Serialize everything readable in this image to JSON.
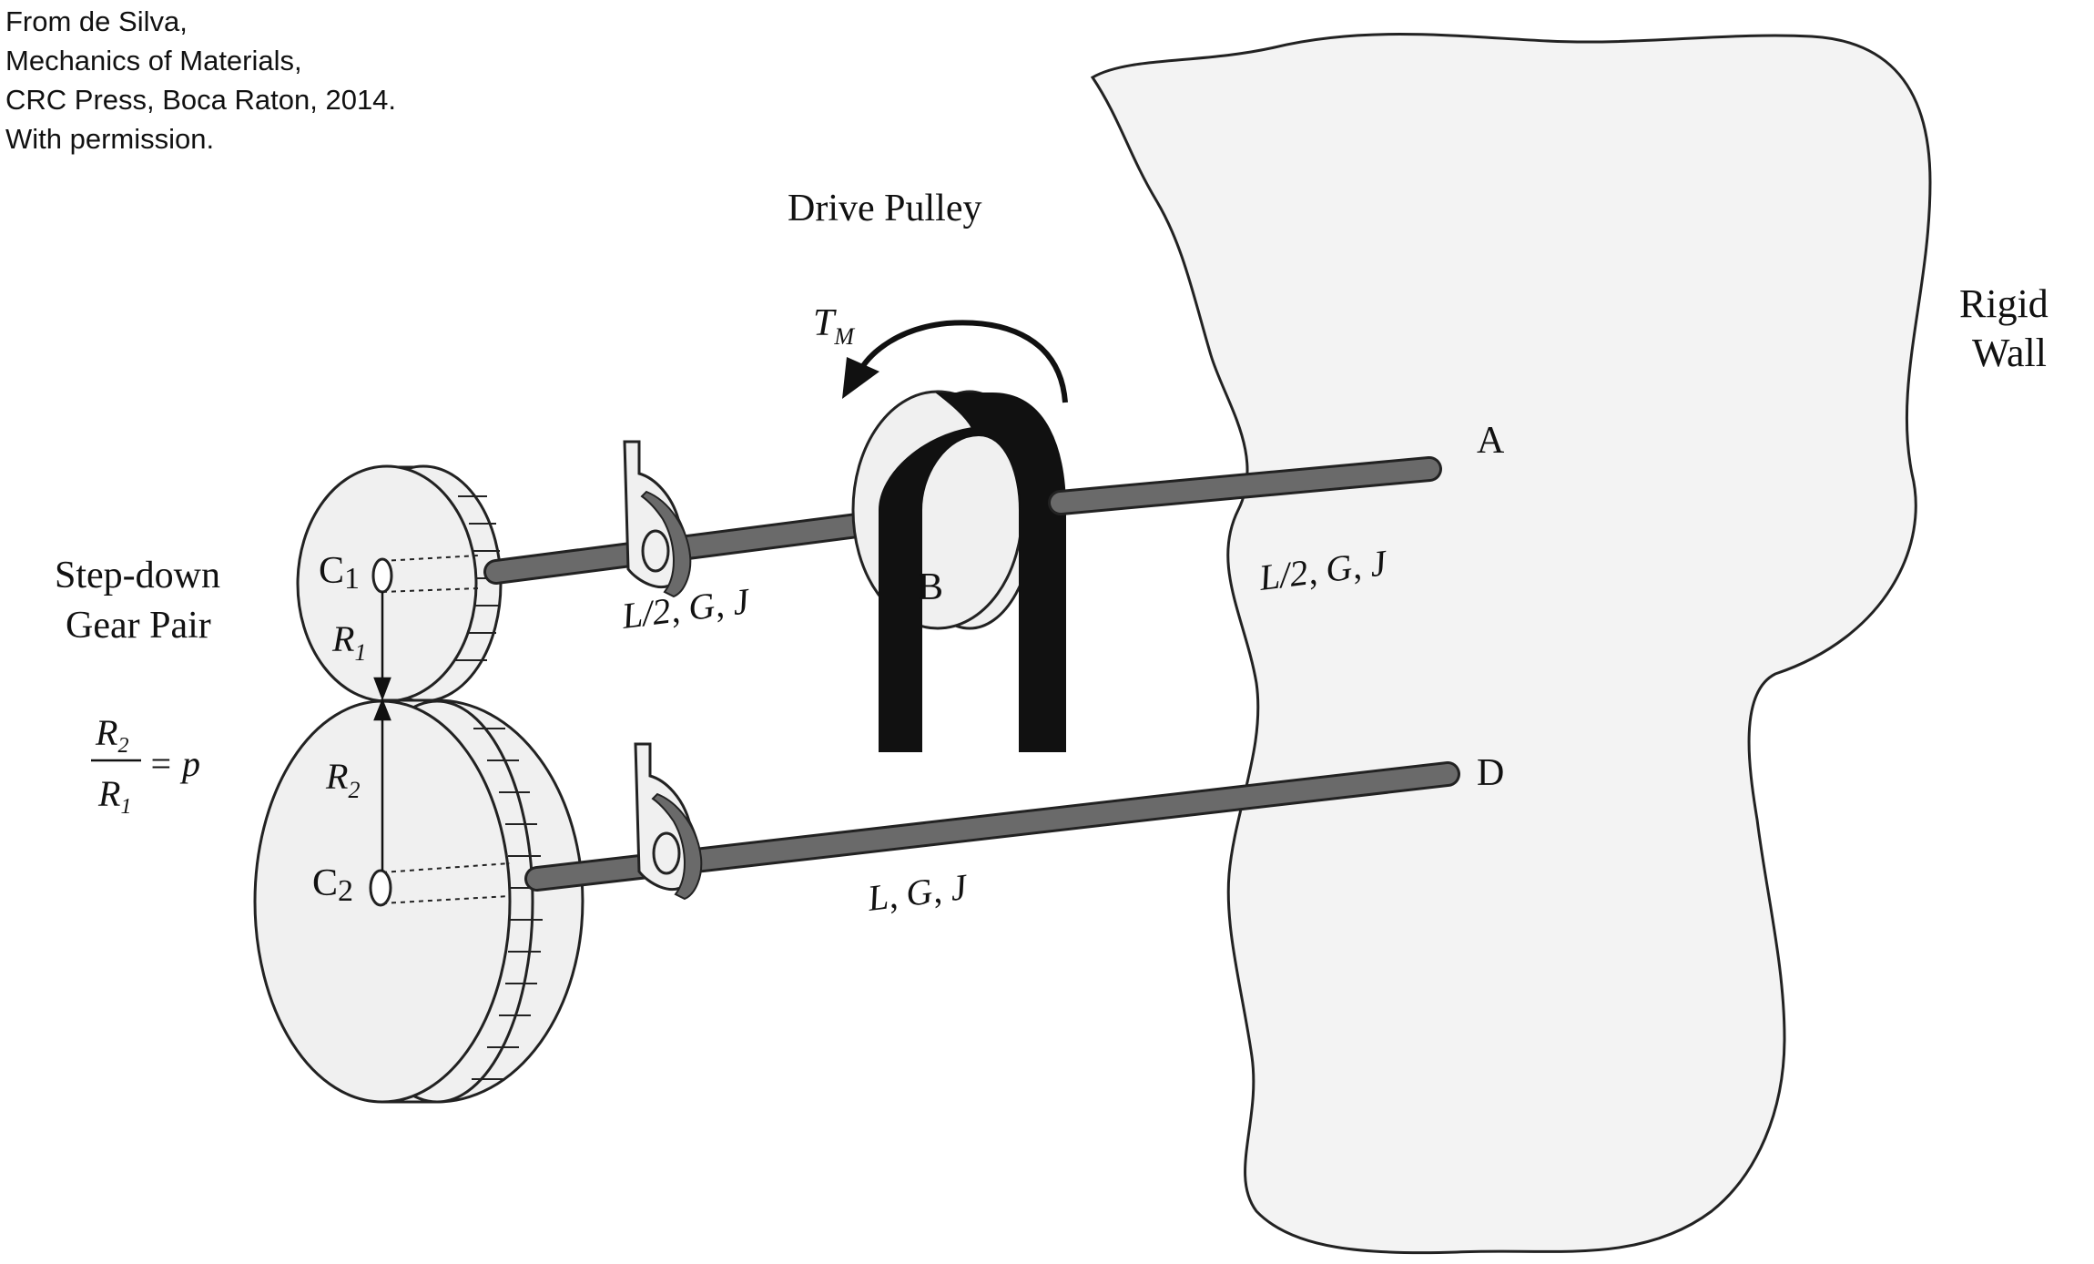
{
  "credit": {
    "line1": "From de Silva,",
    "line2": "Mechanics of Materials,",
    "line3": "CRC Press, Boca Raton, 2014.",
    "line4": "With permission."
  },
  "labels": {
    "drive_pulley": "Drive Pulley",
    "torque_symbol": "T",
    "torque_subscript": "M",
    "rigid": "Rigid",
    "wall": "Wall",
    "point_a": "A",
    "point_b": "B",
    "point_d": "D",
    "c1": "C",
    "c1_sub": "1",
    "c2": "C",
    "c2_sub": "2",
    "r1": "R",
    "r1_sub": "1",
    "r2": "R",
    "r2_sub": "2",
    "step_down": "Step-down",
    "gear_pair": "Gear Pair",
    "ratio_num": "R",
    "ratio_num_sub": "2",
    "ratio_den": "R",
    "ratio_den_sub": "1",
    "ratio_eq": "= p",
    "shaft_left_upper": "L/2, G, J",
    "shaft_right_upper": "L/2, G, J",
    "shaft_lower": "L, G, J"
  },
  "colors": {
    "wall_fill": "#f3f3f3",
    "disk_fill": "#f0f0f0",
    "shaft": "#6a6a6a",
    "belt": "#111111",
    "line": "#222222"
  }
}
